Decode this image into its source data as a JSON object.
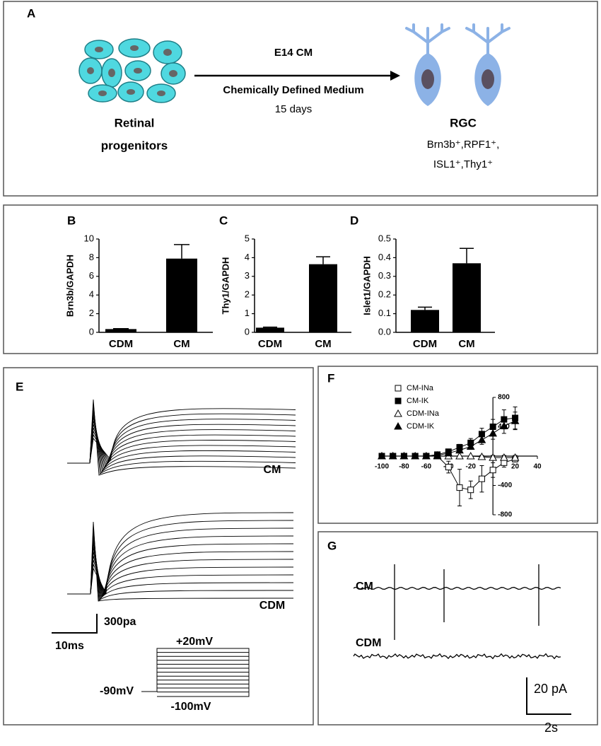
{
  "diagram": {
    "panel": "A",
    "top_label": "E14 CM",
    "bottom_label": "Chemically Defined Medium",
    "duration": "15 days",
    "source": [
      "Retinal",
      "progenitors"
    ],
    "target": "RGC",
    "markers": [
      "Brn3b⁺,RPF1⁺,",
      "ISL1⁺,Thy1⁺"
    ]
  },
  "chart_data": [
    {
      "type": "bar",
      "panel": "B",
      "ylabel": "Brn3b/GAPDH",
      "categories": [
        "CDM",
        "CM"
      ],
      "values": [
        0.35,
        7.9
      ],
      "errors": [
        0.05,
        1.5
      ],
      "color": "#000000",
      "ylim": [
        0,
        10
      ],
      "yticks": [
        0,
        2,
        4,
        6,
        8,
        10
      ]
    },
    {
      "type": "bar",
      "panel": "C",
      "ylabel": "Thy1/GAPDH",
      "categories": [
        "CDM",
        "CM"
      ],
      "values": [
        0.25,
        3.65
      ],
      "errors": [
        0.03,
        0.4
      ],
      "color": "#000000",
      "ylim": [
        0,
        5
      ],
      "yticks": [
        0,
        1,
        2,
        3,
        4,
        5
      ]
    },
    {
      "type": "bar",
      "panel": "D",
      "ylabel": "Islet1/GAPDH",
      "categories": [
        "CDM",
        "CM"
      ],
      "values": [
        0.12,
        0.37
      ],
      "errors": [
        0.015,
        0.08
      ],
      "color": "#000000",
      "ylim": [
        0,
        0.5
      ],
      "yticks": [
        {
          "value": 0,
          "label": "0.0"
        },
        0.1,
        0.2,
        0.3,
        0.4,
        0.5
      ]
    },
    {
      "type": "line",
      "panel": "F",
      "x": [
        -100,
        -90,
        -80,
        -70,
        -60,
        -50,
        -40,
        -30,
        -20,
        -10,
        0,
        10,
        20
      ],
      "series": [
        {
          "name": "CM-INa",
          "marker": "square",
          "filled": false,
          "color": "#000000",
          "values": [
            0,
            0,
            0,
            0,
            0,
            0,
            -150,
            -430,
            -460,
            -310,
            -190,
            -90,
            -40
          ],
          "errors": [
            0,
            0,
            0,
            0,
            0,
            0,
            80,
            250,
            120,
            180,
            100,
            60,
            40
          ]
        },
        {
          "name": "CM-IK",
          "marker": "square",
          "filled": true,
          "color": "#000000",
          "values": [
            0,
            0,
            0,
            0,
            0,
            20,
            60,
            120,
            180,
            300,
            400,
            500,
            520
          ],
          "errors": [
            0,
            0,
            0,
            0,
            0,
            20,
            30,
            40,
            60,
            80,
            100,
            130,
            150
          ]
        },
        {
          "name": "CDM-INa",
          "marker": "triangle",
          "filled": false,
          "color": "#000000",
          "values": [
            0,
            0,
            0,
            0,
            0,
            0,
            0,
            0,
            0,
            -10,
            -20,
            -20,
            -20
          ],
          "errors": [
            0,
            0,
            0,
            0,
            0,
            0,
            0,
            0,
            0,
            20,
            30,
            30,
            30
          ]
        },
        {
          "name": "CDM-IK",
          "marker": "triangle",
          "filled": true,
          "color": "#000000",
          "values": [
            0,
            0,
            0,
            0,
            0,
            10,
            40,
            80,
            130,
            220,
            310,
            410,
            480
          ],
          "errors": [
            0,
            0,
            0,
            0,
            0,
            10,
            20,
            30,
            40,
            60,
            80,
            100,
            120
          ]
        }
      ],
      "xlim": [
        -100,
        40
      ],
      "xticks": [
        -100,
        -80,
        -60,
        -40,
        -20,
        20,
        40
      ],
      "ylim": [
        -800,
        800
      ],
      "yticks": [
        -800,
        -400,
        400,
        800
      ],
      "legend": "upper left"
    }
  ],
  "traces": {
    "panel": "E",
    "labels": [
      "CM",
      "CDM"
    ],
    "scale_bar": {
      "y": "300pa",
      "x": "10ms"
    },
    "protocol": {
      "hold": "-90mV",
      "max": "+20mV",
      "min": "-100mV"
    }
  },
  "recordings": {
    "panel": "G",
    "labels": [
      "CM",
      "CDM"
    ],
    "scale_bar": {
      "y": "20 pA",
      "x": "2s"
    }
  }
}
